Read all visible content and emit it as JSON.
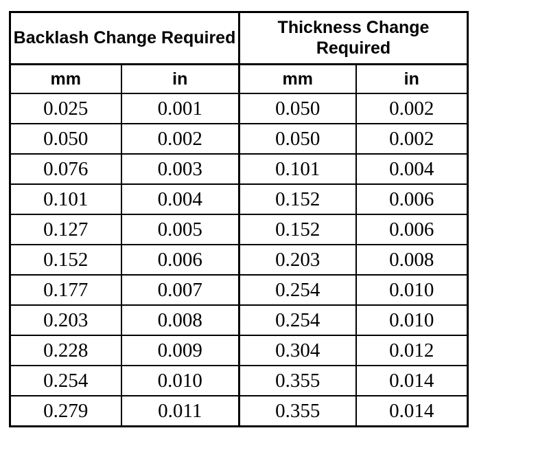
{
  "colors": {
    "background": "#ffffff",
    "border": "#000000",
    "text": "#000000"
  },
  "table": {
    "group_headers": [
      "Backlash Change Required",
      "Thickness Change Required"
    ],
    "unit_headers": [
      "mm",
      "in",
      "mm",
      "in"
    ],
    "rows": [
      [
        "0.025",
        "0.001",
        "0.050",
        "0.002"
      ],
      [
        "0.050",
        "0.002",
        "0.050",
        "0.002"
      ],
      [
        "0.076",
        "0.003",
        "0.101",
        "0.004"
      ],
      [
        "0.101",
        "0.004",
        "0.152",
        "0.006"
      ],
      [
        "0.127",
        "0.005",
        "0.152",
        "0.006"
      ],
      [
        "0.152",
        "0.006",
        "0.203",
        "0.008"
      ],
      [
        "0.177",
        "0.007",
        "0.254",
        "0.010"
      ],
      [
        "0.203",
        "0.008",
        "0.254",
        "0.010"
      ],
      [
        "0.228",
        "0.009",
        "0.304",
        "0.012"
      ],
      [
        "0.254",
        "0.010",
        "0.355",
        "0.014"
      ],
      [
        "0.279",
        "0.011",
        "0.355",
        "0.014"
      ]
    ]
  }
}
